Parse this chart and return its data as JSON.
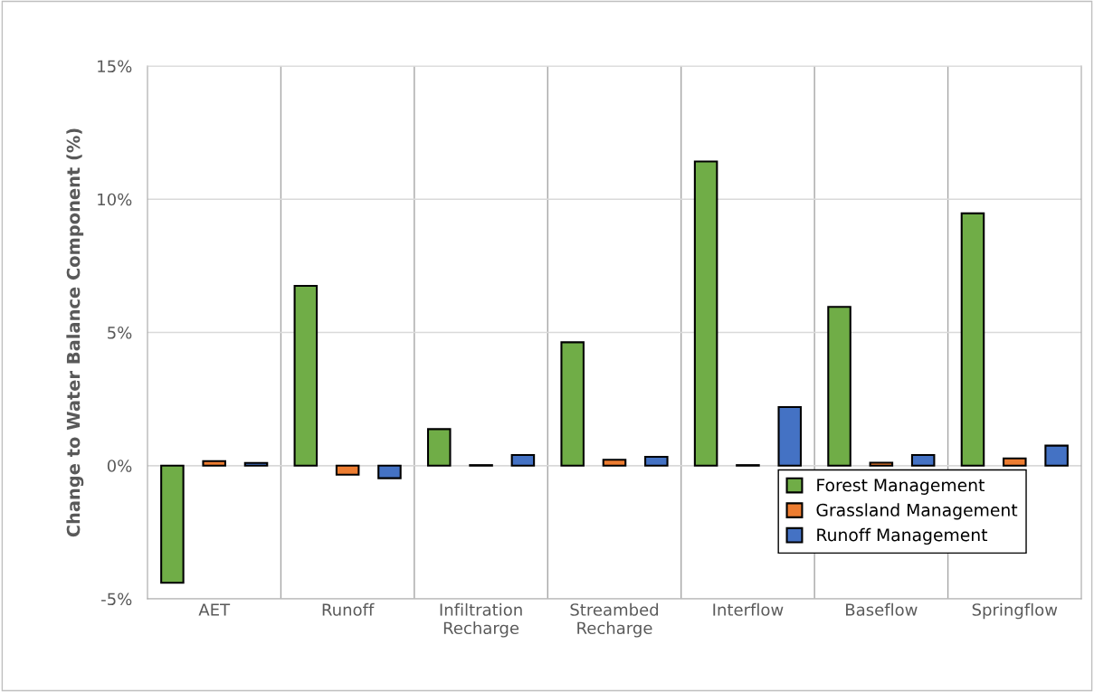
{
  "chart_data": {
    "type": "bar",
    "ylabel": "Change to Water Balance Component (%)",
    "categories": [
      "AET",
      "Runoff",
      "Infiltration\nRecharge",
      "Streambed\nRecharge",
      "Interflow",
      "Baseflow",
      "Springflow"
    ],
    "series": [
      {
        "name": "Forest Management",
        "color": "#70ad47",
        "values": [
          -4.4,
          6.75,
          1.37,
          4.63,
          11.42,
          5.96,
          9.47
        ]
      },
      {
        "name": "Grassland Management",
        "color": "#ed7d31",
        "values": [
          0.17,
          -0.34,
          0.02,
          0.22,
          0.02,
          0.11,
          0.27
        ]
      },
      {
        "name": "Runoff Management",
        "color": "#4472c4",
        "values": [
          0.1,
          -0.47,
          0.4,
          0.33,
          2.2,
          0.4,
          0.75
        ]
      }
    ],
    "ylim": [
      -5,
      15
    ],
    "yticks": [
      {
        "value": -5,
        "label": "-5%"
      },
      {
        "value": 0,
        "label": "0%"
      },
      {
        "value": 5,
        "label": "5%"
      },
      {
        "value": 10,
        "label": "10%"
      },
      {
        "value": 15,
        "label": "15%"
      }
    ],
    "grid": true,
    "legend": "bottom right"
  }
}
